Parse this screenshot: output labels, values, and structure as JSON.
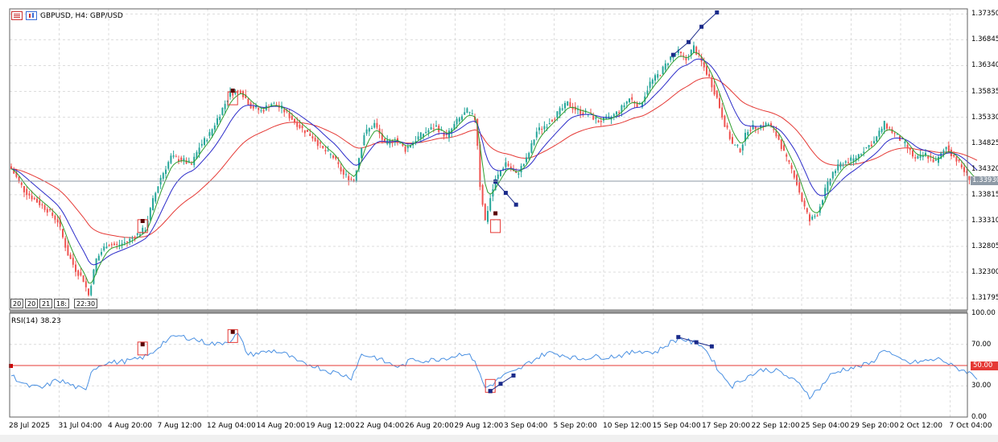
{
  "window": {
    "title": "GBPUSD, H4:  GBP/USD",
    "icons": [
      "list-icon",
      "bar-chart-icon"
    ]
  },
  "colors": {
    "bull": "#26a69a",
    "bear": "#ef5350",
    "ma_fast": "#2e9e2e",
    "ma_mid": "#2b2bc9",
    "ma_slow": "#e53935",
    "rsi": "#4a90e2",
    "grid": "#dcdcdc",
    "marker": "#1a2a8a"
  },
  "price_axis": {
    "ticks": [
      "1.37350",
      "1.36845",
      "1.36340",
      "1.35835",
      "1.35330",
      "1.34825",
      "1.34320",
      "1.33815",
      "1.33310",
      "1.32805",
      "1.32300",
      "1.31795"
    ],
    "current_price": "1.33930"
  },
  "rsi_panel": {
    "label": "RSI(14) 38.23",
    "ticks": [
      "100.00",
      "70.00",
      "30.00",
      "0.00"
    ],
    "level_label": "50.00"
  },
  "time_axis": {
    "ticks": [
      "28 Jul 2025",
      "31 Jul 04:00",
      "4 Aug 20:00",
      "7 Aug 12:00",
      "12 Aug 04:00",
      "14 Aug 20:00",
      "19 Aug 12:00",
      "22 Aug 04:00",
      "26 Aug 20:00",
      "29 Aug 12:00",
      "3 Sep 04:00",
      "5 Sep 20:00",
      "10 Sep 12:00",
      "15 Sep 04:00",
      "17 Sep 20:00",
      "22 Sep 12:00",
      "25 Sep 04:00",
      "29 Sep 20:00",
      "2 Oct 12:00",
      "7 Oct 04:00"
    ],
    "boxes": [
      "20",
      "20",
      "21",
      "18:",
      "22:30"
    ]
  },
  "chart_data": {
    "type": "candlestick",
    "symbol": "GBPUSD",
    "timeframe": "H4",
    "ylim": [
      1.3156,
      1.3745
    ],
    "grid": true,
    "anchors": [
      [
        0,
        1.3432
      ],
      [
        5,
        1.339
      ],
      [
        9,
        1.3372
      ],
      [
        14,
        1.3352
      ],
      [
        18,
        1.333
      ],
      [
        22,
        1.3265
      ],
      [
        25,
        1.3235
      ],
      [
        28,
        1.3215
      ],
      [
        30,
        1.3185
      ],
      [
        33,
        1.3255
      ],
      [
        37,
        1.3285
      ],
      [
        41,
        1.3282
      ],
      [
        45,
        1.329
      ],
      [
        48,
        1.33
      ],
      [
        52,
        1.3315
      ],
      [
        55,
        1.337
      ],
      [
        58,
        1.3415
      ],
      [
        62,
        1.3455
      ],
      [
        66,
        1.345
      ],
      [
        70,
        1.344
      ],
      [
        73,
        1.3475
      ],
      [
        77,
        1.35
      ],
      [
        81,
        1.354
      ],
      [
        85,
        1.358
      ],
      [
        89,
        1.3585
      ],
      [
        93,
        1.3555
      ],
      [
        97,
        1.3545
      ],
      [
        101,
        1.356
      ],
      [
        105,
        1.355
      ],
      [
        109,
        1.353
      ],
      [
        113,
        1.351
      ],
      [
        117,
        1.3495
      ],
      [
        121,
        1.347
      ],
      [
        125,
        1.3455
      ],
      [
        129,
        1.342
      ],
      [
        133,
        1.341
      ],
      [
        137,
        1.35
      ],
      [
        141,
        1.352
      ],
      [
        145,
        1.348
      ],
      [
        149,
        1.349
      ],
      [
        153,
        1.347
      ],
      [
        157,
        1.349
      ],
      [
        161,
        1.3505
      ],
      [
        165,
        1.3515
      ],
      [
        169,
        1.3495
      ],
      [
        173,
        1.3525
      ],
      [
        177,
        1.3545
      ],
      [
        180,
        1.353
      ],
      [
        181,
        1.348
      ],
      [
        182,
        1.34
      ],
      [
        184,
        1.333
      ],
      [
        186,
        1.3375
      ],
      [
        188,
        1.341
      ],
      [
        192,
        1.3445
      ],
      [
        196,
        1.342
      ],
      [
        200,
        1.345
      ],
      [
        204,
        1.3505
      ],
      [
        208,
        1.352
      ],
      [
        212,
        1.354
      ],
      [
        216,
        1.356
      ],
      [
        220,
        1.3545
      ],
      [
        224,
        1.354
      ],
      [
        228,
        1.3525
      ],
      [
        232,
        1.353
      ],
      [
        236,
        1.3545
      ],
      [
        240,
        1.357
      ],
      [
        244,
        1.3555
      ],
      [
        248,
        1.36
      ],
      [
        252,
        1.362
      ],
      [
        256,
        1.365
      ],
      [
        259,
        1.366
      ],
      [
        262,
        1.3645
      ],
      [
        265,
        1.367
      ],
      [
        268,
        1.364
      ],
      [
        271,
        1.361
      ],
      [
        274,
        1.357
      ],
      [
        277,
        1.352
      ],
      [
        280,
        1.348
      ],
      [
        283,
        1.347
      ],
      [
        286,
        1.351
      ],
      [
        290,
        1.3515
      ],
      [
        294,
        1.352
      ],
      [
        298,
        1.349
      ],
      [
        301,
        1.345
      ],
      [
        304,
        1.342
      ],
      [
        307,
        1.337
      ],
      [
        310,
        1.333
      ],
      [
        313,
        1.3345
      ],
      [
        316,
        1.339
      ],
      [
        319,
        1.3425
      ],
      [
        323,
        1.3445
      ],
      [
        327,
        1.345
      ],
      [
        331,
        1.347
      ],
      [
        335,
        1.3485
      ],
      [
        339,
        1.352
      ],
      [
        343,
        1.35
      ],
      [
        347,
        1.348
      ],
      [
        351,
        1.345
      ],
      [
        355,
        1.346
      ],
      [
        359,
        1.3445
      ],
      [
        363,
        1.3475
      ],
      [
        367,
        1.345
      ],
      [
        371,
        1.342
      ],
      [
        375,
        1.34
      ]
    ],
    "rsi_anchors": [
      [
        0,
        40
      ],
      [
        6,
        30
      ],
      [
        12,
        28
      ],
      [
        18,
        36
      ],
      [
        24,
        30
      ],
      [
        29,
        25
      ],
      [
        31,
        45
      ],
      [
        36,
        52
      ],
      [
        42,
        53
      ],
      [
        48,
        55
      ],
      [
        54,
        60
      ],
      [
        59,
        72
      ],
      [
        64,
        78
      ],
      [
        70,
        76
      ],
      [
        75,
        72
      ],
      [
        80,
        70
      ],
      [
        85,
        74
      ],
      [
        88,
        80
      ],
      [
        92,
        60
      ],
      [
        97,
        62
      ],
      [
        102,
        64
      ],
      [
        107,
        60
      ],
      [
        112,
        52
      ],
      [
        117,
        50
      ],
      [
        122,
        45
      ],
      [
        127,
        42
      ],
      [
        132,
        38
      ],
      [
        136,
        60
      ],
      [
        141,
        58
      ],
      [
        146,
        52
      ],
      [
        151,
        48
      ],
      [
        156,
        56
      ],
      [
        161,
        54
      ],
      [
        166,
        56
      ],
      [
        171,
        58
      ],
      [
        176,
        62
      ],
      [
        180,
        55
      ],
      [
        182,
        40
      ],
      [
        184,
        28
      ],
      [
        187,
        32
      ],
      [
        191,
        40
      ],
      [
        196,
        44
      ],
      [
        202,
        54
      ],
      [
        208,
        62
      ],
      [
        214,
        60
      ],
      [
        220,
        56
      ],
      [
        226,
        58
      ],
      [
        232,
        58
      ],
      [
        238,
        60
      ],
      [
        244,
        64
      ],
      [
        250,
        62
      ],
      [
        256,
        72
      ],
      [
        260,
        76
      ],
      [
        264,
        72
      ],
      [
        268,
        70
      ],
      [
        272,
        56
      ],
      [
        276,
        40
      ],
      [
        280,
        30
      ],
      [
        285,
        38
      ],
      [
        292,
        46
      ],
      [
        298,
        44
      ],
      [
        302,
        38
      ],
      [
        307,
        30
      ],
      [
        310,
        20
      ],
      [
        314,
        28
      ],
      [
        318,
        40
      ],
      [
        323,
        46
      ],
      [
        328,
        48
      ],
      [
        334,
        52
      ],
      [
        339,
        66
      ],
      [
        344,
        56
      ],
      [
        349,
        52
      ],
      [
        355,
        54
      ],
      [
        361,
        56
      ],
      [
        366,
        48
      ],
      [
        371,
        44
      ],
      [
        375,
        38
      ]
    ]
  }
}
